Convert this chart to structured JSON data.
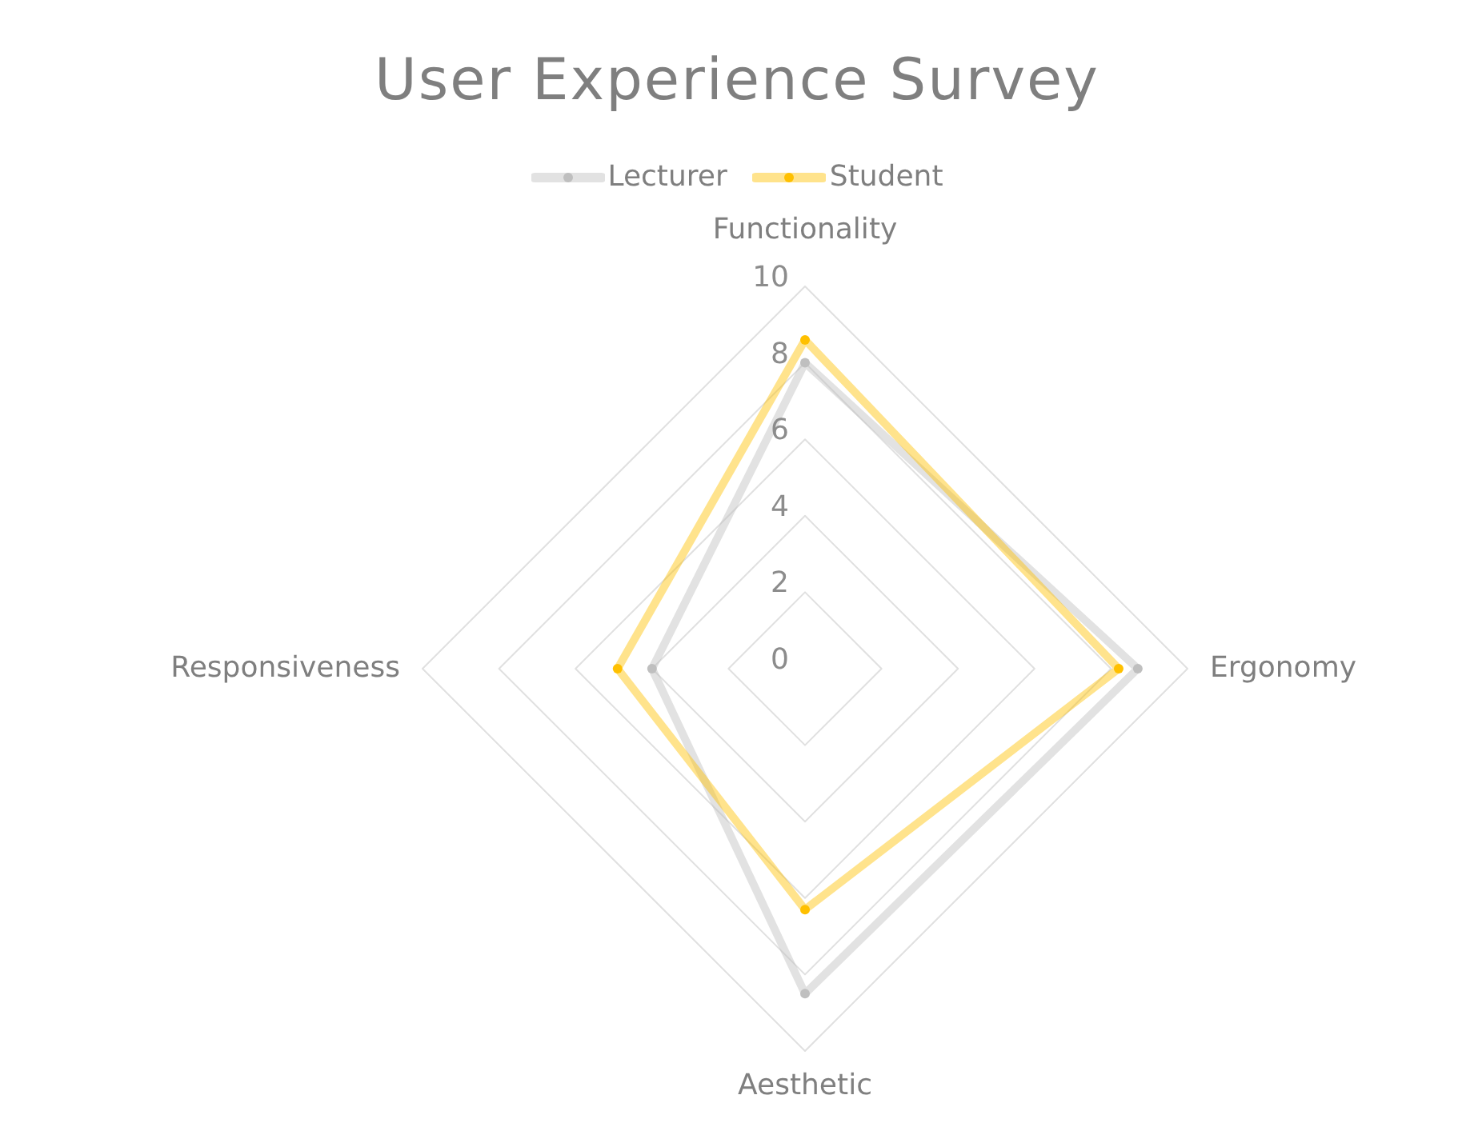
{
  "chart_data": {
    "type": "radar",
    "title": "User Experience Survey",
    "categories": [
      "Functionality",
      "Ergonomy",
      "Aesthetic",
      "Responsiveness"
    ],
    "series": [
      {
        "name": "Lecturer",
        "color": "#bfbfbf",
        "values": [
          8,
          8.7,
          8.5,
          4
        ]
      },
      {
        "name": "Student",
        "color": "#ffc000",
        "values": [
          8.6,
          8.2,
          6.3,
          4.9
        ]
      }
    ],
    "ylim": [
      0,
      10
    ],
    "yticks": [
      0,
      2,
      4,
      6,
      8,
      10
    ],
    "grid": true,
    "legend": "top",
    "marker": "circle"
  }
}
